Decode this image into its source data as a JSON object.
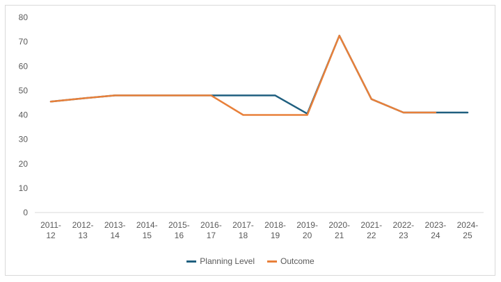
{
  "chart_data": {
    "type": "line",
    "categories": [
      [
        "2011-",
        "12"
      ],
      [
        "2012-",
        "13"
      ],
      [
        "2013-",
        "14"
      ],
      [
        "2014-",
        "15"
      ],
      [
        "2015-",
        "16"
      ],
      [
        "2016-",
        "17"
      ],
      [
        "2017-",
        "18"
      ],
      [
        "2018-",
        "19"
      ],
      [
        "2019-",
        "20"
      ],
      [
        "2020-",
        "21"
      ],
      [
        "2021-",
        "22"
      ],
      [
        "2022-",
        "23"
      ],
      [
        "2023-",
        "24"
      ],
      [
        "2024-",
        "25"
      ]
    ],
    "series": [
      {
        "name": "Planning Level",
        "color": "#1f5f7f",
        "values": [
          45.5,
          46.8,
          48,
          48,
          48,
          48,
          48,
          48,
          40.5,
          72.5,
          46.5,
          41,
          41,
          41
        ]
      },
      {
        "name": "Outcome",
        "color": "#e8803a",
        "values": [
          45.5,
          46.8,
          48,
          48,
          48,
          48,
          40,
          40,
          40,
          72.5,
          46.5,
          41,
          41,
          null
        ]
      }
    ],
    "yticks": [
      "0",
      "10",
      "20",
      "30",
      "40",
      "50",
      "60",
      "70",
      "80"
    ],
    "ylim": [
      0,
      80
    ],
    "grid": false,
    "legend_position": "bottom"
  }
}
